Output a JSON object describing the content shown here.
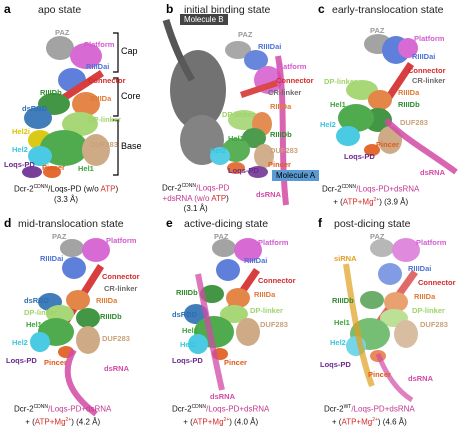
{
  "colors": {
    "paz": "#9a9a9a",
    "platform": "#d45ad0",
    "rnaseiii_dai": "#4d73d6",
    "connector": "#d42a2a",
    "rnaseiii_da": "#e07a35",
    "dp_linker": "#9fd36a",
    "rnaseiii_db": "#2f8b2f",
    "dsrbd": "#2d6fb3",
    "hel2i": "#d8c400",
    "hel2": "#38c5e0",
    "duf283": "#c9a27a",
    "loqs_pd": "#6a2a8f",
    "pincer": "#e05a1a",
    "hel1": "#3da33a",
    "dsrna": "#d24aa5",
    "cr_linker": "#6b6b6b",
    "sirna": "#e0a020",
    "molecule_b": "#444444",
    "molecule_a": "#5b9bd5"
  },
  "panels": [
    {
      "letter": "a",
      "title": "apo state",
      "labels": [
        "PAZ",
        "Platform",
        "RIIIDai",
        "Connector",
        "RIIIDb",
        "RIIIDa",
        "dsRBD",
        "DP-linker",
        "Hel2i",
        "Hel2",
        "DUF283",
        "Loqs-PD",
        "Pincer",
        "Hel1"
      ],
      "brackets": [
        "Cap",
        "Core",
        "Base"
      ],
      "caption": [
        "Dcr-2",
        "CDNN",
        "/Loqs-PD (w/o ",
        "ATP",
        ")",
        "(3.3 Å)"
      ]
    },
    {
      "letter": "b",
      "title": "initial binding state",
      "labels": [
        "Molecule B",
        "PAZ",
        "RIIIDai",
        "Platform",
        "Connector",
        "CR-linker",
        "DP-linker",
        "RIIIDa",
        "RIIIDb",
        "Hel1",
        "Hel2",
        "DUF283",
        "Loqs-PD",
        "Pincer",
        "Molecule A",
        "dsRNA"
      ],
      "caption": [
        "Dcr-2",
        "CDNN",
        "/Loqs-PD",
        "+dsRNA (w/o ",
        "ATP",
        ")",
        "(3.1 Å)"
      ]
    },
    {
      "letter": "c",
      "title": "early-translocation state",
      "labels": [
        "PAZ",
        "Platform",
        "RIIIDai",
        "Connector",
        "CR-linker",
        "DP-linker",
        "RIIIDa",
        "RIIIDb",
        "Hel1",
        "Hel2",
        "DUF283",
        "Loqs-PD",
        "Pincer",
        "dsRNA"
      ],
      "caption": [
        "Dcr-2",
        "CDNN",
        "/Loqs-PD+",
        "dsRNA",
        "+ (",
        "ATP+Mg",
        "2+",
        ") (3.9 Å)"
      ]
    },
    {
      "letter": "d",
      "title": "mid-translocation state",
      "labels": [
        "PAZ",
        "Platform",
        "RIIIDai",
        "Connector",
        "CR-linker",
        "RIIIDa",
        "dsRBD",
        "DP-linker",
        "Hel1",
        "RIIIDb",
        "Hel2",
        "DUF283",
        "Loqs-PD",
        "Pincer",
        "dsRNA"
      ],
      "caption": [
        "Dcr-2",
        "CDNN",
        "/Loqs-PD+",
        "dsRNA",
        "+ (",
        "ATP+Mg",
        "2+",
        ") (4.2 Å)"
      ]
    },
    {
      "letter": "e",
      "title": "active-dicing state",
      "labels": [
        "PAZ",
        "Platform",
        "RIIIDai",
        "Connector",
        "RIIIDb",
        "RIIIDa",
        "dsRBD",
        "DP-linker",
        "DUF283",
        "Hel1",
        "Hel2",
        "Loqs-PD",
        "Pincer",
        "dsRNA"
      ],
      "caption": [
        "Dcr-2",
        "CDNN",
        "/Loqs-PD+",
        "dsRNA",
        "+ (",
        "ATP+Mg",
        "2+",
        ") (4.0 Å)"
      ]
    },
    {
      "letter": "f",
      "title": "post-dicing state",
      "labels": [
        "PAZ",
        "Platform",
        "siRNA",
        "RIIIDai",
        "Connector",
        "RIIIDb",
        "RIIIDa",
        "DP-linker",
        "Hel1",
        "DUF283",
        "Hel2",
        "Loqs-PD",
        "Pincer",
        "dsRNA"
      ],
      "caption": [
        "Dcr-2",
        "WT",
        "/Loqs-PD+",
        "dsRNA",
        "+ (",
        "ATP+Mg",
        "2+",
        ") (4.6 Å)"
      ]
    }
  ]
}
